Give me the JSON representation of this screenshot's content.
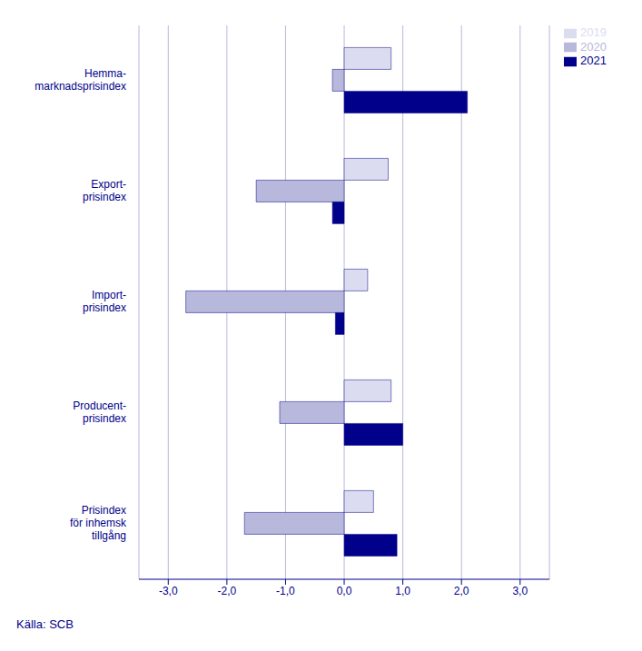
{
  "chart_data": {
    "type": "bar",
    "orientation": "horizontal",
    "categories": [
      "Hemma-\nmarknadsprisindex",
      "Export-\nprisindex",
      "Import-\nprisindex",
      "Producent-\nprisindex",
      "Prisindex\nför inhemsk\ntillgång"
    ],
    "series": [
      {
        "name": "2019",
        "color": "#dcdcf0",
        "values": [
          0.8,
          0.75,
          0.4,
          0.8,
          0.5
        ]
      },
      {
        "name": "2020",
        "color": "#b8b8dc",
        "values": [
          -0.2,
          -1.5,
          -2.7,
          -1.1,
          -1.7
        ]
      },
      {
        "name": "2021",
        "color": "#00008B",
        "values": [
          2.1,
          -0.2,
          -0.15,
          1.0,
          0.9
        ]
      }
    ],
    "xlim": [
      -3.5,
      3.5
    ],
    "xticks": [
      {
        "value": -3.0,
        "label": "-3,0"
      },
      {
        "value": -2.0,
        "label": "-2,0"
      },
      {
        "value": -1.0,
        "label": "-1,0"
      },
      {
        "value": 0.0,
        "label": "0,0"
      },
      {
        "value": 1.0,
        "label": "1,0"
      },
      {
        "value": 2.0,
        "label": "2,0"
      },
      {
        "value": 3.0,
        "label": "3,0"
      }
    ],
    "grid": true,
    "legend": "right",
    "annotations": [
      "Källa: SCB"
    ]
  }
}
